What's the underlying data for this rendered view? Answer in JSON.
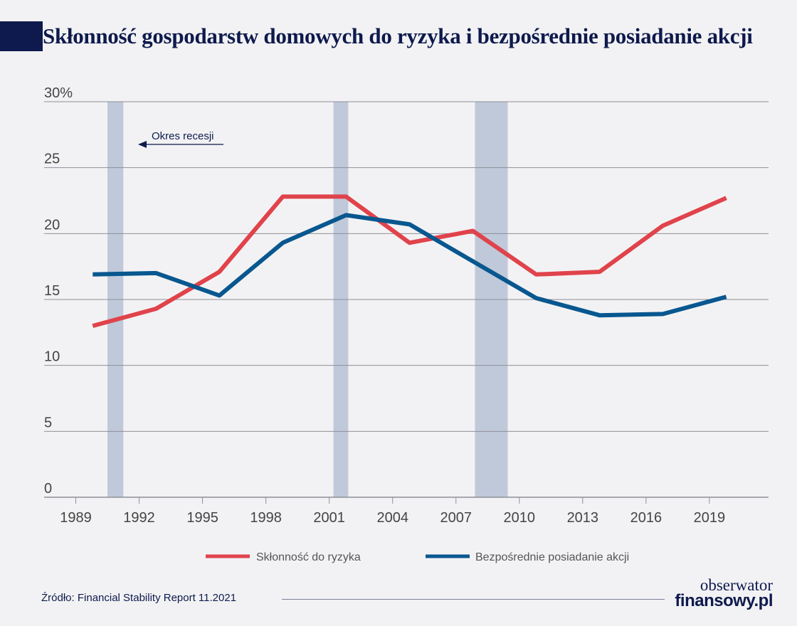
{
  "title": "Skłonność gospodarstw domowych do ryzyka i bezpośrednie posiadanie akcji",
  "source": "Źródło: Financial Stability Report 11.2021",
  "logo": {
    "line1": "obserwator",
    "line2": "finansowy.pl"
  },
  "colors": {
    "title": "#0e1a4d",
    "risk": "#e0434b",
    "stocks": "#08578f",
    "recession": "#bfc9da",
    "grid": "#8f8f98",
    "text": "#444444"
  },
  "chart_data": {
    "type": "line",
    "title": "Skłonność gospodarstw domowych do ryzyka i bezpośrednie posiadanie akcji",
    "xlabel": "",
    "ylabel": "",
    "xlim": [
      1987.5,
      2021.8
    ],
    "ylim": [
      0,
      30
    ],
    "x_ticks": [
      1989,
      1992,
      1995,
      1998,
      2001,
      2004,
      2007,
      2010,
      2013,
      2016,
      2019
    ],
    "y_ticks": [
      0,
      5,
      10,
      15,
      20,
      25,
      30
    ],
    "y_tick_labels": [
      "0",
      "5",
      "10",
      "15",
      "20",
      "25",
      "30%"
    ],
    "grid": "horizontal",
    "legend_position": "bottom",
    "series": [
      {
        "name": "Skłonność do ryzyka",
        "color": "#e0434b",
        "x": [
          1989.8,
          1992.8,
          1995.8,
          1998.8,
          2001.8,
          2004.8,
          2007.8,
          2010.8,
          2013.8,
          2016.8,
          2019.8
        ],
        "values": [
          13.0,
          14.3,
          17.1,
          22.8,
          22.8,
          19.3,
          20.2,
          16.9,
          17.1,
          20.6,
          22.7
        ]
      },
      {
        "name": "Bezpośrednie posiadanie akcji",
        "color": "#08578f",
        "x": [
          1989.8,
          1992.8,
          1995.8,
          1998.8,
          2001.8,
          2004.8,
          2007.8,
          2010.8,
          2013.8,
          2016.8,
          2019.8
        ],
        "values": [
          16.9,
          17.0,
          15.3,
          19.3,
          21.4,
          20.7,
          17.9,
          15.1,
          13.8,
          13.9,
          15.2
        ]
      }
    ],
    "recessions": [
      {
        "start": 1990.5,
        "end": 1991.25
      },
      {
        "start": 2001.2,
        "end": 2001.9
      },
      {
        "start": 2007.9,
        "end": 2009.45
      }
    ],
    "annotation": {
      "text": "Okres recesji"
    }
  }
}
